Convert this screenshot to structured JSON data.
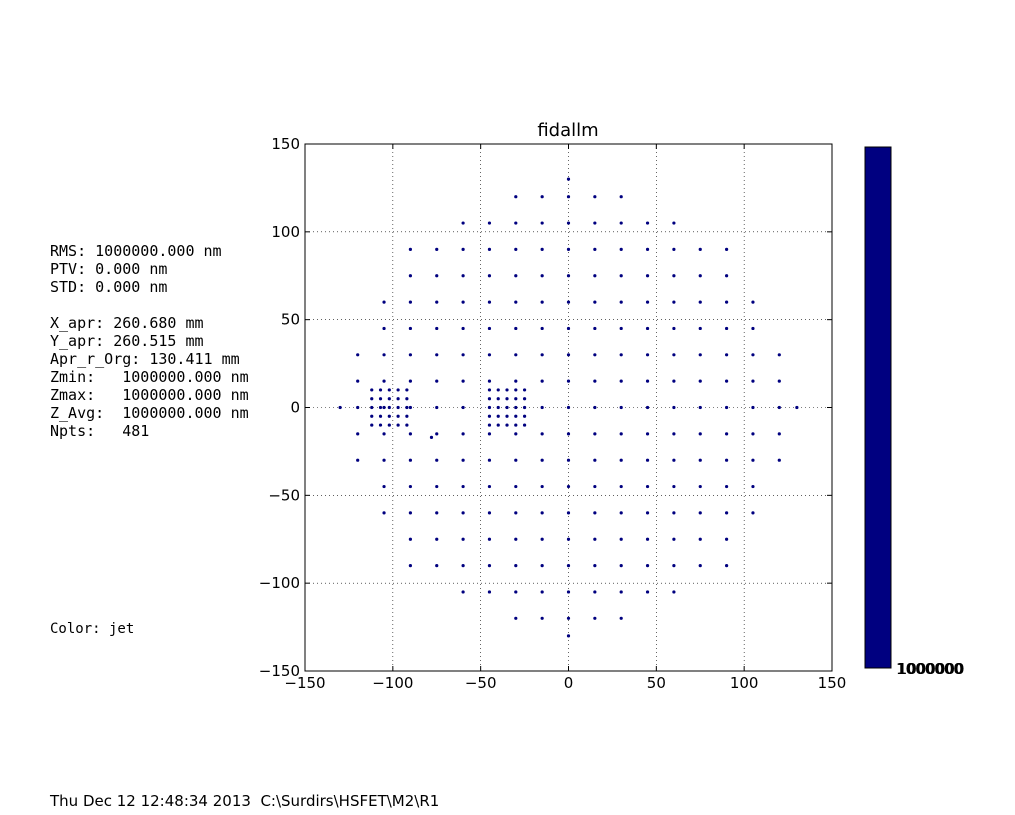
{
  "stats": {
    "lines": [
      "RMS: 1000000.000 nm",
      "PTV: 0.000 nm",
      "STD: 0.000 nm",
      "",
      "X_apr: 260.680 mm",
      "Y_apr: 260.515 mm",
      "Apr_r_Org: 130.411 mm",
      "Zmin:   1000000.000 nm",
      "Zmax:   1000000.000 nm",
      "Z_Avg:  1000000.000 nm",
      "Npts:   481"
    ]
  },
  "color_note": "Color: jet",
  "footer": "Thu Dec 12 12:48:34 2013  C:\\Surdirs\\HSFET\\M2\\R1",
  "colors": {
    "point": "#00007f",
    "colorbar": "#000080"
  },
  "chart_data": {
    "type": "scatter",
    "title": "fidallm",
    "xlabel": "",
    "ylabel": "",
    "xlim": [
      -150,
      150
    ],
    "ylim": [
      -150,
      150
    ],
    "xticks": [
      -150,
      -100,
      -50,
      0,
      50,
      100,
      150
    ],
    "yticks": [
      -150,
      -100,
      -50,
      0,
      50,
      100,
      150
    ],
    "x_tick_labels": [
      "−150",
      "−100",
      "−50",
      "0",
      "50",
      "100",
      "150"
    ],
    "y_tick_labels": [
      "−150",
      "−100",
      "−50",
      "0",
      "50",
      "100",
      "150"
    ],
    "grid": true,
    "marker_color": "#00007f",
    "grid_spacing": 15,
    "grid_radius_limit": 128,
    "extra_points": [
      [
        -130,
        0
      ],
      [
        130,
        0
      ],
      [
        0,
        130
      ],
      [
        0,
        -130
      ],
      [
        -78,
        -17
      ]
    ],
    "dense_clusters": [
      {
        "x_range": [
          -112,
          -92
        ],
        "y_range": [
          -10,
          10
        ],
        "step": 5
      },
      {
        "x_range": [
          -45,
          -25
        ],
        "y_range": [
          -10,
          10
        ],
        "step": 5
      }
    ],
    "colorbar": {
      "color": "#000080",
      "tick_label": "1000000",
      "overlapping_labels": [
        "1000000",
        "1000000",
        "1000000",
        "1000000"
      ]
    },
    "npts": 481
  }
}
